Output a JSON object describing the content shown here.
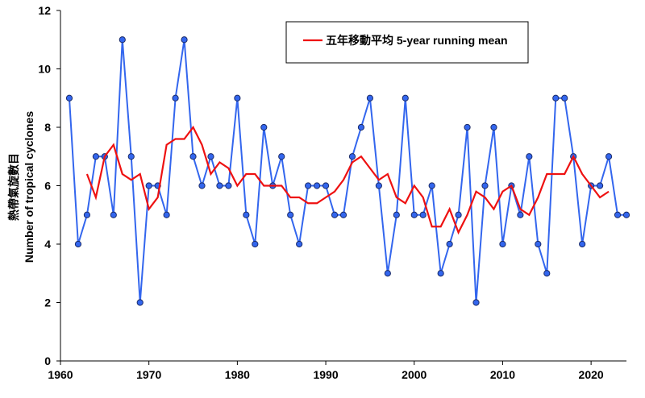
{
  "chart_data": {
    "type": "line",
    "ylabel": [
      "熱帶氣旋數目",
      "Number of tropical cyclones"
    ],
    "x": [
      1961,
      1962,
      1963,
      1964,
      1965,
      1966,
      1967,
      1968,
      1969,
      1970,
      1971,
      1972,
      1973,
      1974,
      1975,
      1976,
      1977,
      1978,
      1979,
      1980,
      1981,
      1982,
      1983,
      1984,
      1985,
      1986,
      1987,
      1988,
      1989,
      1990,
      1991,
      1992,
      1993,
      1994,
      1995,
      1996,
      1997,
      1998,
      1999,
      2000,
      2001,
      2002,
      2003,
      2004,
      2005,
      2006,
      2007,
      2008,
      2009,
      2010,
      2011,
      2012,
      2013,
      2014,
      2015,
      2016,
      2017,
      2018,
      2019,
      2020,
      2021,
      2022,
      2023,
      2024
    ],
    "series": [
      {
        "color": "#3366ee",
        "markers": true,
        "values": [
          9,
          4,
          5,
          7,
          7,
          5,
          11,
          7,
          2,
          6,
          6,
          5,
          9,
          11,
          7,
          6,
          7,
          6,
          6,
          9,
          5,
          4,
          8,
          6,
          7,
          5,
          4,
          6,
          6,
          6,
          5,
          5,
          7,
          8,
          9,
          6,
          3,
          5,
          9,
          5,
          5,
          6,
          3,
          4,
          5,
          8,
          2,
          6,
          8,
          4,
          6,
          5,
          7,
          4,
          3,
          9,
          9,
          7,
          4,
          6,
          6,
          7,
          5,
          5
        ]
      },
      {
        "name": "五年移動平均 5-year running mean",
        "color": "#ee1111",
        "markers": false,
        "values": [
          null,
          null,
          6.4,
          5.6,
          7.0,
          7.4,
          6.4,
          6.2,
          6.4,
          5.2,
          5.6,
          7.4,
          7.6,
          7.6,
          8.0,
          7.4,
          6.4,
          6.8,
          6.6,
          6.0,
          6.4,
          6.4,
          6.0,
          6.0,
          6.0,
          5.6,
          5.6,
          5.4,
          5.4,
          5.6,
          5.8,
          6.2,
          6.8,
          7.0,
          6.6,
          6.2,
          6.4,
          5.6,
          5.4,
          6.0,
          5.6,
          4.6,
          4.6,
          5.2,
          4.4,
          5.0,
          5.8,
          5.6,
          5.2,
          5.8,
          6.0,
          5.2,
          5.0,
          5.6,
          6.4,
          6.4,
          6.4,
          7.0,
          6.4,
          6.0,
          5.6,
          5.8,
          null,
          null
        ]
      }
    ],
    "xlim": [
      1960,
      2024
    ],
    "xticks": [
      1960,
      1970,
      1980,
      1990,
      2000,
      2010,
      2020
    ],
    "ylim": [
      0,
      12
    ],
    "yticks": [
      0,
      2,
      4,
      6,
      8,
      10,
      12
    ],
    "legend": "top-center"
  }
}
